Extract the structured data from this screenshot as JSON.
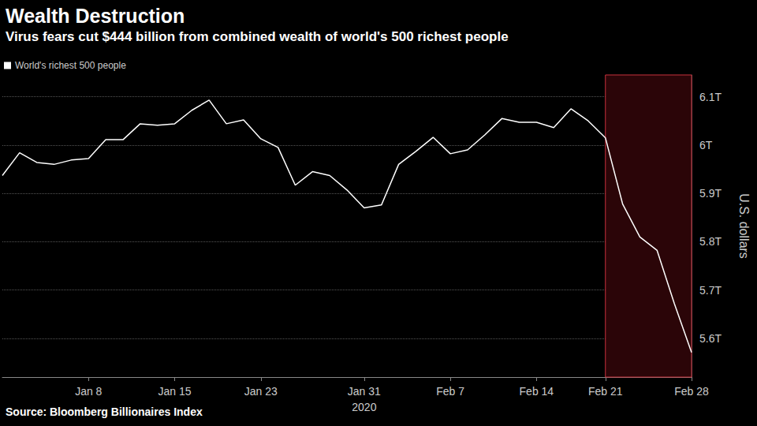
{
  "chart_data": {
    "type": "line",
    "title": "Wealth Destruction",
    "subtitle": "Virus fears cut $444 billion from combined wealth of world's 500 richest people",
    "source": "Source: Bloomberg Billionaires Index",
    "y_label": "U.S. dollars",
    "categories": [
      null,
      null,
      null,
      null,
      null,
      "Jan 8",
      null,
      null,
      null,
      null,
      "Jan 15",
      null,
      null,
      null,
      null,
      "Jan 23",
      null,
      null,
      null,
      null,
      null,
      "Jan 31",
      null,
      null,
      null,
      null,
      "Feb 7",
      null,
      null,
      null,
      null,
      "Feb 14",
      null,
      null,
      null,
      "Feb 21",
      null,
      null,
      null,
      null,
      "Feb 28"
    ],
    "year_label": "2020",
    "year_label_at": "Jan 31",
    "series": [
      {
        "name": "World's richest 500 people",
        "color": "#ffffff",
        "values": [
          5.937,
          5.984,
          5.964,
          5.96,
          5.969,
          5.972,
          6.011,
          6.011,
          6.044,
          6.041,
          6.044,
          6.072,
          6.093,
          6.044,
          6.052,
          6.013,
          5.995,
          5.917,
          5.945,
          5.937,
          5.907,
          5.87,
          5.876,
          5.96,
          5.987,
          6.016,
          5.982,
          5.99,
          6.021,
          6.055,
          6.047,
          6.047,
          6.036,
          6.075,
          6.05,
          6.015,
          5.878,
          5.81,
          5.782,
          5.672,
          5.571
        ]
      }
    ],
    "ylim": [
      5.52,
      6.145
    ],
    "yticks": [
      {
        "value": 5.6,
        "label": "5.6T"
      },
      {
        "value": 5.7,
        "label": "5.7T"
      },
      {
        "value": 5.8,
        "label": "5.8T"
      },
      {
        "value": 5.9,
        "label": "5.9T"
      },
      {
        "value": 6.0,
        "label": "6T"
      },
      {
        "value": 6.1,
        "label": "6.1T"
      }
    ],
    "grid": true,
    "legend": "top-left",
    "shaded_range": [
      "Feb 21",
      "Feb 28"
    ]
  }
}
